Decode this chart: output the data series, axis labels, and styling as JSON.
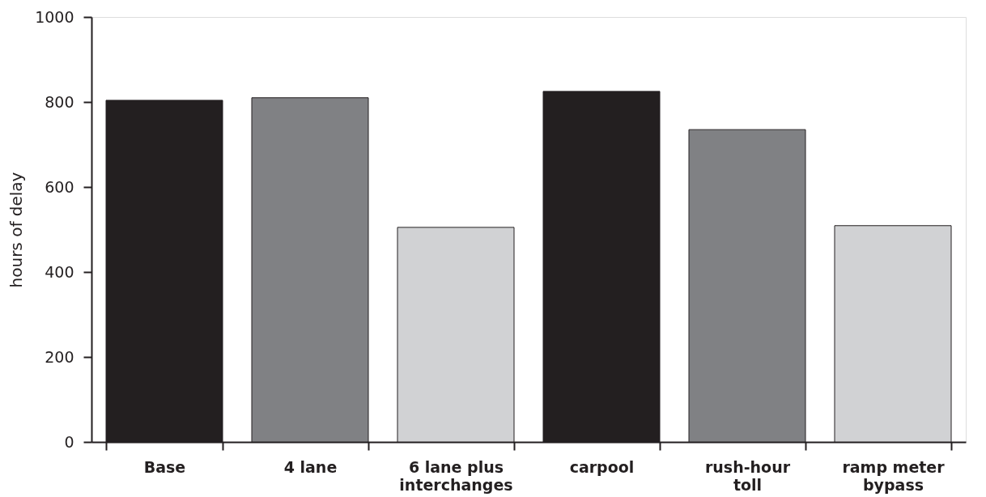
{
  "chart_data": {
    "type": "bar",
    "ylabel": "hours of delay",
    "categories": [
      "Base",
      "4 lane",
      "6 lane plus interchanges",
      "carpool",
      "rush-hour toll",
      "ramp meter bypass"
    ],
    "values": [
      804,
      810,
      505,
      825,
      735,
      509
    ],
    "colors": [
      "#231f20",
      "#808184",
      "#d1d2d4",
      "#231f20",
      "#808184",
      "#d1d2d4"
    ],
    "ylim": [
      0,
      1000
    ],
    "yticks": [
      0,
      200,
      400,
      600,
      800,
      1000
    ],
    "grid": false
  }
}
